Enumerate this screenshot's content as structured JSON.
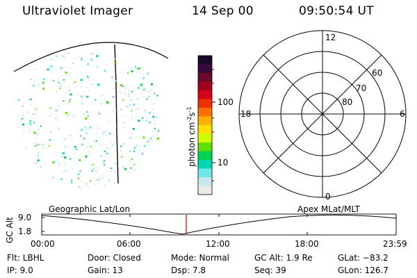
{
  "header": {
    "instrument": "Ultraviolet Imager",
    "date": "14 Sep 00",
    "time": "09:50:54 UT"
  },
  "colorbar": {
    "label": "photon cm",
    "label_sup": "-2",
    "label_mid": "s",
    "label_sup2": "-1",
    "ticks": [
      "100",
      "10"
    ],
    "colors": [
      "#1a0a2a",
      "#3a0a3a",
      "#6a0a2a",
      "#a0001a",
      "#d8001a",
      "#f03000",
      "#ff7000",
      "#ffb000",
      "#ffe000",
      "#d0ff00",
      "#60e000",
      "#00d050",
      "#00d8b0",
      "#70e8e8",
      "#c8e8f0",
      "#eaeaea"
    ]
  },
  "polar": {
    "mlt_labels": {
      "top": "12",
      "left": "18",
      "right": "6",
      "bottom": "0"
    },
    "lat_labels": [
      "60",
      "70",
      "80"
    ]
  },
  "alt_panel": {
    "left_title": "Geographic Lat/Lon",
    "right_title": "Apex MLat/MLT",
    "axis_label": "GC Alt",
    "yticks": [
      "9.0",
      "1.8"
    ],
    "xticks": [
      "00:00",
      "06:00",
      "12:00",
      "18:00",
      "23:59"
    ]
  },
  "info": {
    "flt": "Flt: LBHL",
    "ip": "IP:  9.0",
    "door": "Door: Closed",
    "gain": "Gain: 13",
    "mode": "Mode: Normal",
    "dsp": "Dsp:     7.8",
    "gcalt": "GC Alt: 1.9 Re",
    "seq": "Seq: 39",
    "glat": "GLat: −83.2",
    "glon": "GLon: 126.7"
  }
}
